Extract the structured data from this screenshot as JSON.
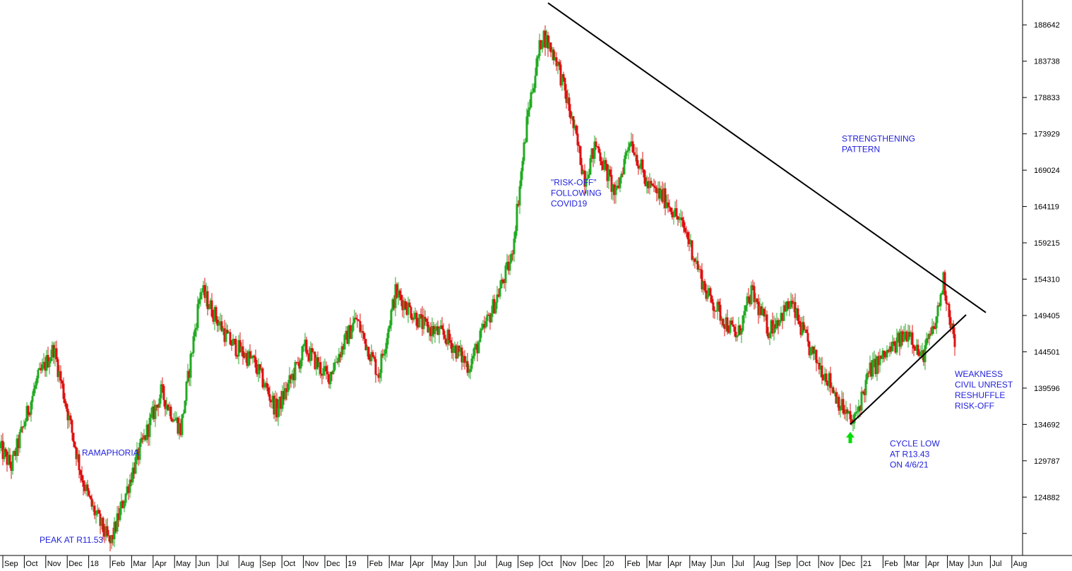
{
  "chart_data": {
    "type": "candlestick",
    "colors": {
      "up": "#22aa22",
      "down": "#dd1111",
      "trendline": "#000000",
      "annotation": "#2222dd",
      "arrow": "#00dd00"
    },
    "ylim": [
      117000,
      192000
    ],
    "y_ticks": [
      124882,
      129787,
      134692,
      139596,
      144501,
      149405,
      154310,
      159215,
      164119,
      169024,
      173929,
      178833,
      183738,
      188642
    ],
    "x_ticks": [
      "Sep",
      "Oct",
      "Nov",
      "Dec",
      "18",
      "Feb",
      "Mar",
      "Apr",
      "May",
      "Jun",
      "Jul",
      "Aug",
      "Sep",
      "Oct",
      "Nov",
      "Dec",
      "19",
      "Feb",
      "Mar",
      "Apr",
      "May",
      "Jun",
      "Jul",
      "Aug",
      "Sep",
      "Oct",
      "Nov",
      "Dec",
      "20",
      "Feb",
      "Mar",
      "Apr",
      "May",
      "Jun",
      "Jul",
      "Aug",
      "Sep",
      "Oct",
      "Nov",
      "Dec",
      "21",
      "Feb",
      "Mar",
      "Apr",
      "May",
      "Jun",
      "Jul",
      "Aug"
    ],
    "price_path": [
      {
        "t": 0,
        "v": 131500
      },
      {
        "t": 4,
        "v": 129000
      },
      {
        "t": 13,
        "v": 140500
      },
      {
        "t": 19,
        "v": 145000
      },
      {
        "t": 23,
        "v": 138000
      },
      {
        "t": 29,
        "v": 127500
      },
      {
        "t": 32,
        "v": 124000
      },
      {
        "t": 39,
        "v": 118500
      },
      {
        "t": 47,
        "v": 128500
      },
      {
        "t": 57,
        "v": 139000
      },
      {
        "t": 64,
        "v": 134000
      },
      {
        "t": 71,
        "v": 153000
      },
      {
        "t": 81,
        "v": 146000
      },
      {
        "t": 90,
        "v": 143000
      },
      {
        "t": 98,
        "v": 136500
      },
      {
        "t": 108,
        "v": 145000
      },
      {
        "t": 116,
        "v": 141000
      },
      {
        "t": 126,
        "v": 149000
      },
      {
        "t": 134,
        "v": 141500
      },
      {
        "t": 140,
        "v": 152500
      },
      {
        "t": 150,
        "v": 148000
      },
      {
        "t": 158,
        "v": 146500
      },
      {
        "t": 166,
        "v": 142500
      },
      {
        "t": 174,
        "v": 150000
      },
      {
        "t": 181,
        "v": 157000
      },
      {
        "t": 187,
        "v": 177000
      },
      {
        "t": 192,
        "v": 187500
      },
      {
        "t": 197,
        "v": 184000
      },
      {
        "t": 202,
        "v": 176500
      },
      {
        "t": 207,
        "v": 168000
      },
      {
        "t": 211,
        "v": 172500
      },
      {
        "t": 218,
        "v": 165500
      },
      {
        "t": 223,
        "v": 173500
      },
      {
        "t": 229,
        "v": 167000
      },
      {
        "t": 236,
        "v": 165000
      },
      {
        "t": 243,
        "v": 160500
      },
      {
        "t": 250,
        "v": 152500
      },
      {
        "t": 256,
        "v": 149000
      },
      {
        "t": 261,
        "v": 146500
      },
      {
        "t": 266,
        "v": 152500
      },
      {
        "t": 272,
        "v": 147500
      },
      {
        "t": 280,
        "v": 151000
      },
      {
        "t": 287,
        "v": 144500
      },
      {
        "t": 293,
        "v": 141000
      },
      {
        "t": 298,
        "v": 137000
      },
      {
        "t": 302,
        "v": 134700
      },
      {
        "t": 308,
        "v": 142000
      },
      {
        "t": 316,
        "v": 145000
      },
      {
        "t": 322,
        "v": 147500
      },
      {
        "t": 326,
        "v": 143500
      },
      {
        "t": 331,
        "v": 148000
      },
      {
        "t": 334,
        "v": 154200
      },
      {
        "t": 338,
        "v": 145500
      }
    ],
    "trendlines": [
      {
        "name": "resistance",
        "from": {
          "t": 194,
          "v": 191600
        },
        "to": {
          "t": 349,
          "v": 149800
        }
      },
      {
        "name": "support",
        "from": {
          "t": 301,
          "v": 134700
        },
        "to": {
          "t": 342,
          "v": 149500
        }
      }
    ],
    "annotations": [
      {
        "lines": [
          "PEAK AT R11.53"
        ],
        "t": 14,
        "v": 118700
      },
      {
        "lines": [
          "RAMAPHORIA"
        ],
        "t": 29,
        "v": 130500
      },
      {
        "lines": [
          "\"RISK-OFF\"",
          "FOLLOWING",
          "COVID19"
        ],
        "t": 195,
        "v": 167000
      },
      {
        "lines": [
          "STRENGTHENING",
          "PATTERN"
        ],
        "t": 298,
        "v": 172900
      },
      {
        "lines": [
          "CYCLE LOW",
          "AT R13.43",
          "ON 4/6/21"
        ],
        "t": 315,
        "v": 131700
      },
      {
        "lines": [
          "WEAKNESS",
          "CIVIL UNREST",
          "RESHUFFLE",
          "RISK-OFF"
        ],
        "t": 338,
        "v": 141100
      }
    ],
    "arrow": {
      "t": 301,
      "v": 133500,
      "direction": "up"
    }
  }
}
